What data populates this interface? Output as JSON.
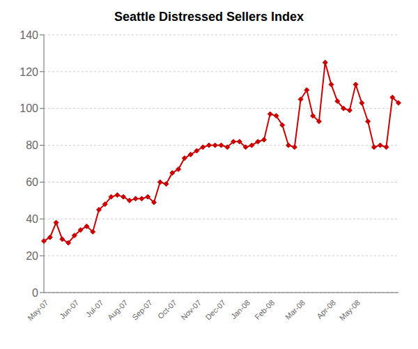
{
  "chart_data": {
    "type": "line",
    "title": "Seattle Distressed Sellers Index",
    "categories": [
      "May-07",
      null,
      null,
      null,
      null,
      "Jun-07",
      null,
      null,
      null,
      "Jul-07",
      null,
      null,
      null,
      "Aug-07",
      null,
      null,
      null,
      "Sep-07",
      null,
      null,
      null,
      "Oct-07",
      null,
      null,
      null,
      "Nov-07",
      null,
      null,
      null,
      "Dec-07",
      null,
      null,
      null,
      "Jan-08",
      null,
      null,
      null,
      "Feb-08",
      null,
      null,
      null,
      null,
      "Mar-08",
      null,
      null,
      null,
      null,
      "Apr-08",
      null,
      null,
      null,
      "May-08",
      null,
      null,
      null,
      null,
      null,
      null,
      null
    ],
    "values": [
      28,
      30,
      38,
      29,
      27,
      31,
      34,
      36,
      33,
      45,
      48,
      52,
      53,
      52,
      50,
      51,
      51,
      52,
      49,
      60,
      59,
      65,
      67,
      73,
      75,
      77,
      79,
      80,
      80,
      80,
      79,
      82,
      82,
      79,
      80,
      82,
      83,
      97,
      96,
      91,
      80,
      79,
      105,
      110,
      96,
      93,
      125,
      113,
      104,
      100,
      99,
      113,
      103,
      93,
      79,
      80,
      79,
      106,
      103
    ],
    "color": "#cc0000",
    "marker": "diamond",
    "ylim": [
      0,
      140
    ],
    "yticks": [
      0,
      20,
      40,
      60,
      80,
      100,
      120,
      140
    ],
    "grid": true
  }
}
